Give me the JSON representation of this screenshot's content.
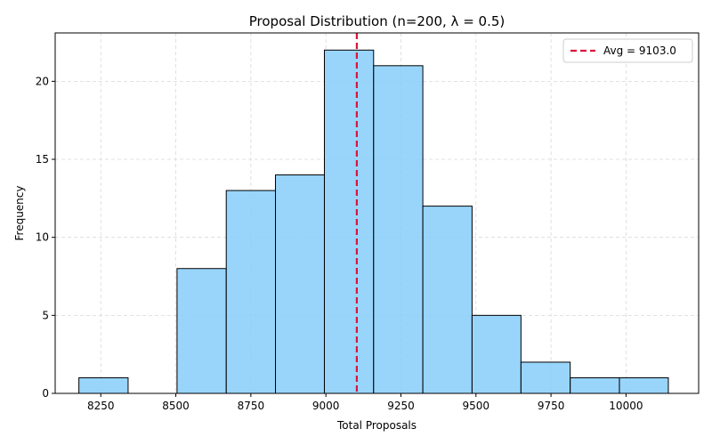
{
  "chart_data": {
    "type": "bar",
    "title": "Proposal Distribution (n=200, λ = 0.5)",
    "xlabel": "Total Proposals",
    "ylabel": "Frequency",
    "xlim": [
      8098,
      10242
    ],
    "ylim": [
      0,
      23.1
    ],
    "xticks": [
      8250,
      8500,
      8750,
      9000,
      9250,
      9500,
      9750,
      10000
    ],
    "yticks": [
      0,
      5,
      10,
      15,
      20
    ],
    "grid": true,
    "bins": [
      {
        "start": 8177,
        "end": 8341,
        "count": 1
      },
      {
        "start": 8341,
        "end": 8504,
        "count": 0
      },
      {
        "start": 8504,
        "end": 8668,
        "count": 8
      },
      {
        "start": 8668,
        "end": 8832,
        "count": 13
      },
      {
        "start": 8832,
        "end": 8995,
        "count": 14
      },
      {
        "start": 8995,
        "end": 9159,
        "count": 22
      },
      {
        "start": 9159,
        "end": 9323,
        "count": 21
      },
      {
        "start": 9323,
        "end": 9487,
        "count": 12
      },
      {
        "start": 9487,
        "end": 9650,
        "count": 5
      },
      {
        "start": 9650,
        "end": 9814,
        "count": 2
      },
      {
        "start": 9814,
        "end": 9978,
        "count": 1
      },
      {
        "start": 9978,
        "end": 10141,
        "count": 1
      }
    ],
    "bar_color": "#87CEFA",
    "bar_edge_color": "#000000",
    "mean_line": {
      "value": 9103.0,
      "color": "#DC143C",
      "label": "Avg = 9103.0"
    },
    "legend_position": "top-right"
  }
}
